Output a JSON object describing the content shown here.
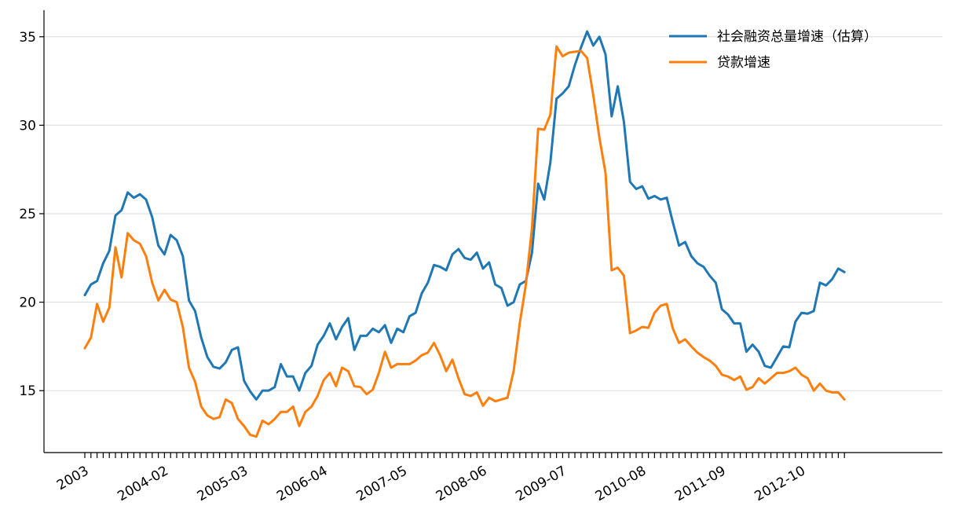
{
  "chart_data": {
    "type": "line",
    "title": "",
    "xlabel": "",
    "ylabel": "",
    "ylim": [
      11.5,
      36.5
    ],
    "yticks": [
      15,
      20,
      25,
      30,
      35
    ],
    "grid": "horizontal",
    "legend_position": "top-right",
    "start": "2003-01",
    "xtick_labels": [
      "2003",
      "2004-02",
      "2005-03",
      "2006-04",
      "2007-05",
      "2008-06",
      "2009-07",
      "2010-08",
      "2011-09",
      "2012-10"
    ],
    "series": [
      {
        "name": "社会融资总量增速（估算）",
        "color": "#1f77b4",
        "values": [
          20.4,
          21.0,
          21.2,
          22.2,
          22.9,
          24.9,
          25.2,
          26.2,
          25.9,
          26.1,
          25.8,
          24.8,
          23.2,
          22.7,
          23.8,
          23.5,
          22.6,
          20.1,
          19.5,
          18.0,
          16.9,
          16.35,
          16.25,
          16.6,
          17.3,
          17.45,
          15.55,
          14.95,
          14.5,
          15.0,
          15.0,
          15.2,
          16.5,
          15.8,
          15.8,
          15.0,
          16.0,
          16.4,
          17.6,
          18.1,
          18.8,
          17.9,
          18.6,
          19.1,
          17.3,
          18.1,
          18.1,
          18.5,
          18.3,
          18.7,
          17.7,
          18.5,
          18.3,
          19.2,
          19.4,
          20.5,
          21.1,
          22.1,
          22.0,
          21.8,
          22.7,
          23.0,
          22.5,
          22.4,
          22.8,
          21.9,
          22.25,
          21.0,
          20.8,
          19.8,
          20.0,
          21.0,
          21.2,
          22.8,
          26.7,
          25.8,
          27.9,
          31.5,
          31.8,
          32.2,
          33.4,
          34.4,
          35.3,
          34.5,
          35.0,
          34.0,
          30.5,
          32.2,
          30.2,
          26.8,
          26.4,
          26.55,
          25.85,
          26.0,
          25.8,
          25.9,
          24.5,
          23.2,
          23.4,
          22.6,
          22.2,
          22.0,
          21.5,
          21.1,
          19.6,
          19.3,
          18.8,
          18.8,
          17.2,
          17.6,
          17.2,
          16.4,
          16.3,
          16.9,
          17.5,
          17.45,
          18.9,
          19.4,
          19.35,
          19.5,
          21.1,
          20.95,
          21.3,
          21.9,
          21.7
        ]
      },
      {
        "name": "贷款增速",
        "color": "#ff7f0e",
        "values": [
          17.4,
          18.0,
          19.9,
          18.9,
          19.7,
          23.1,
          21.4,
          23.9,
          23.5,
          23.3,
          22.6,
          21.1,
          20.1,
          20.7,
          20.15,
          20.0,
          18.6,
          16.3,
          15.5,
          14.1,
          13.6,
          13.4,
          13.5,
          14.5,
          14.3,
          13.4,
          13.0,
          12.5,
          12.4,
          13.3,
          13.1,
          13.4,
          13.8,
          13.8,
          14.1,
          13.0,
          13.8,
          14.1,
          14.7,
          15.6,
          16.0,
          15.25,
          16.3,
          16.1,
          15.25,
          15.2,
          14.8,
          15.05,
          16.0,
          17.2,
          16.3,
          16.5,
          16.5,
          16.5,
          16.7,
          17.0,
          17.15,
          17.7,
          17.0,
          16.1,
          16.75,
          15.7,
          14.8,
          14.7,
          14.9,
          14.15,
          14.6,
          14.4,
          14.5,
          14.6,
          16.1,
          18.8,
          21.0,
          24.2,
          29.8,
          29.75,
          30.6,
          34.45,
          33.9,
          34.1,
          34.15,
          34.2,
          33.8,
          31.7,
          29.3,
          27.3,
          21.8,
          21.95,
          21.5,
          18.25,
          18.4,
          18.6,
          18.55,
          19.4,
          19.8,
          19.9,
          18.5,
          17.7,
          17.9,
          17.5,
          17.15,
          16.9,
          16.7,
          16.4,
          15.9,
          15.8,
          15.6,
          15.8,
          15.05,
          15.2,
          15.7,
          15.4,
          15.7,
          16.0,
          16.0,
          16.1,
          16.3,
          15.9,
          15.7,
          15.0,
          15.4,
          15.0,
          14.9,
          14.9,
          14.5
        ]
      }
    ]
  }
}
